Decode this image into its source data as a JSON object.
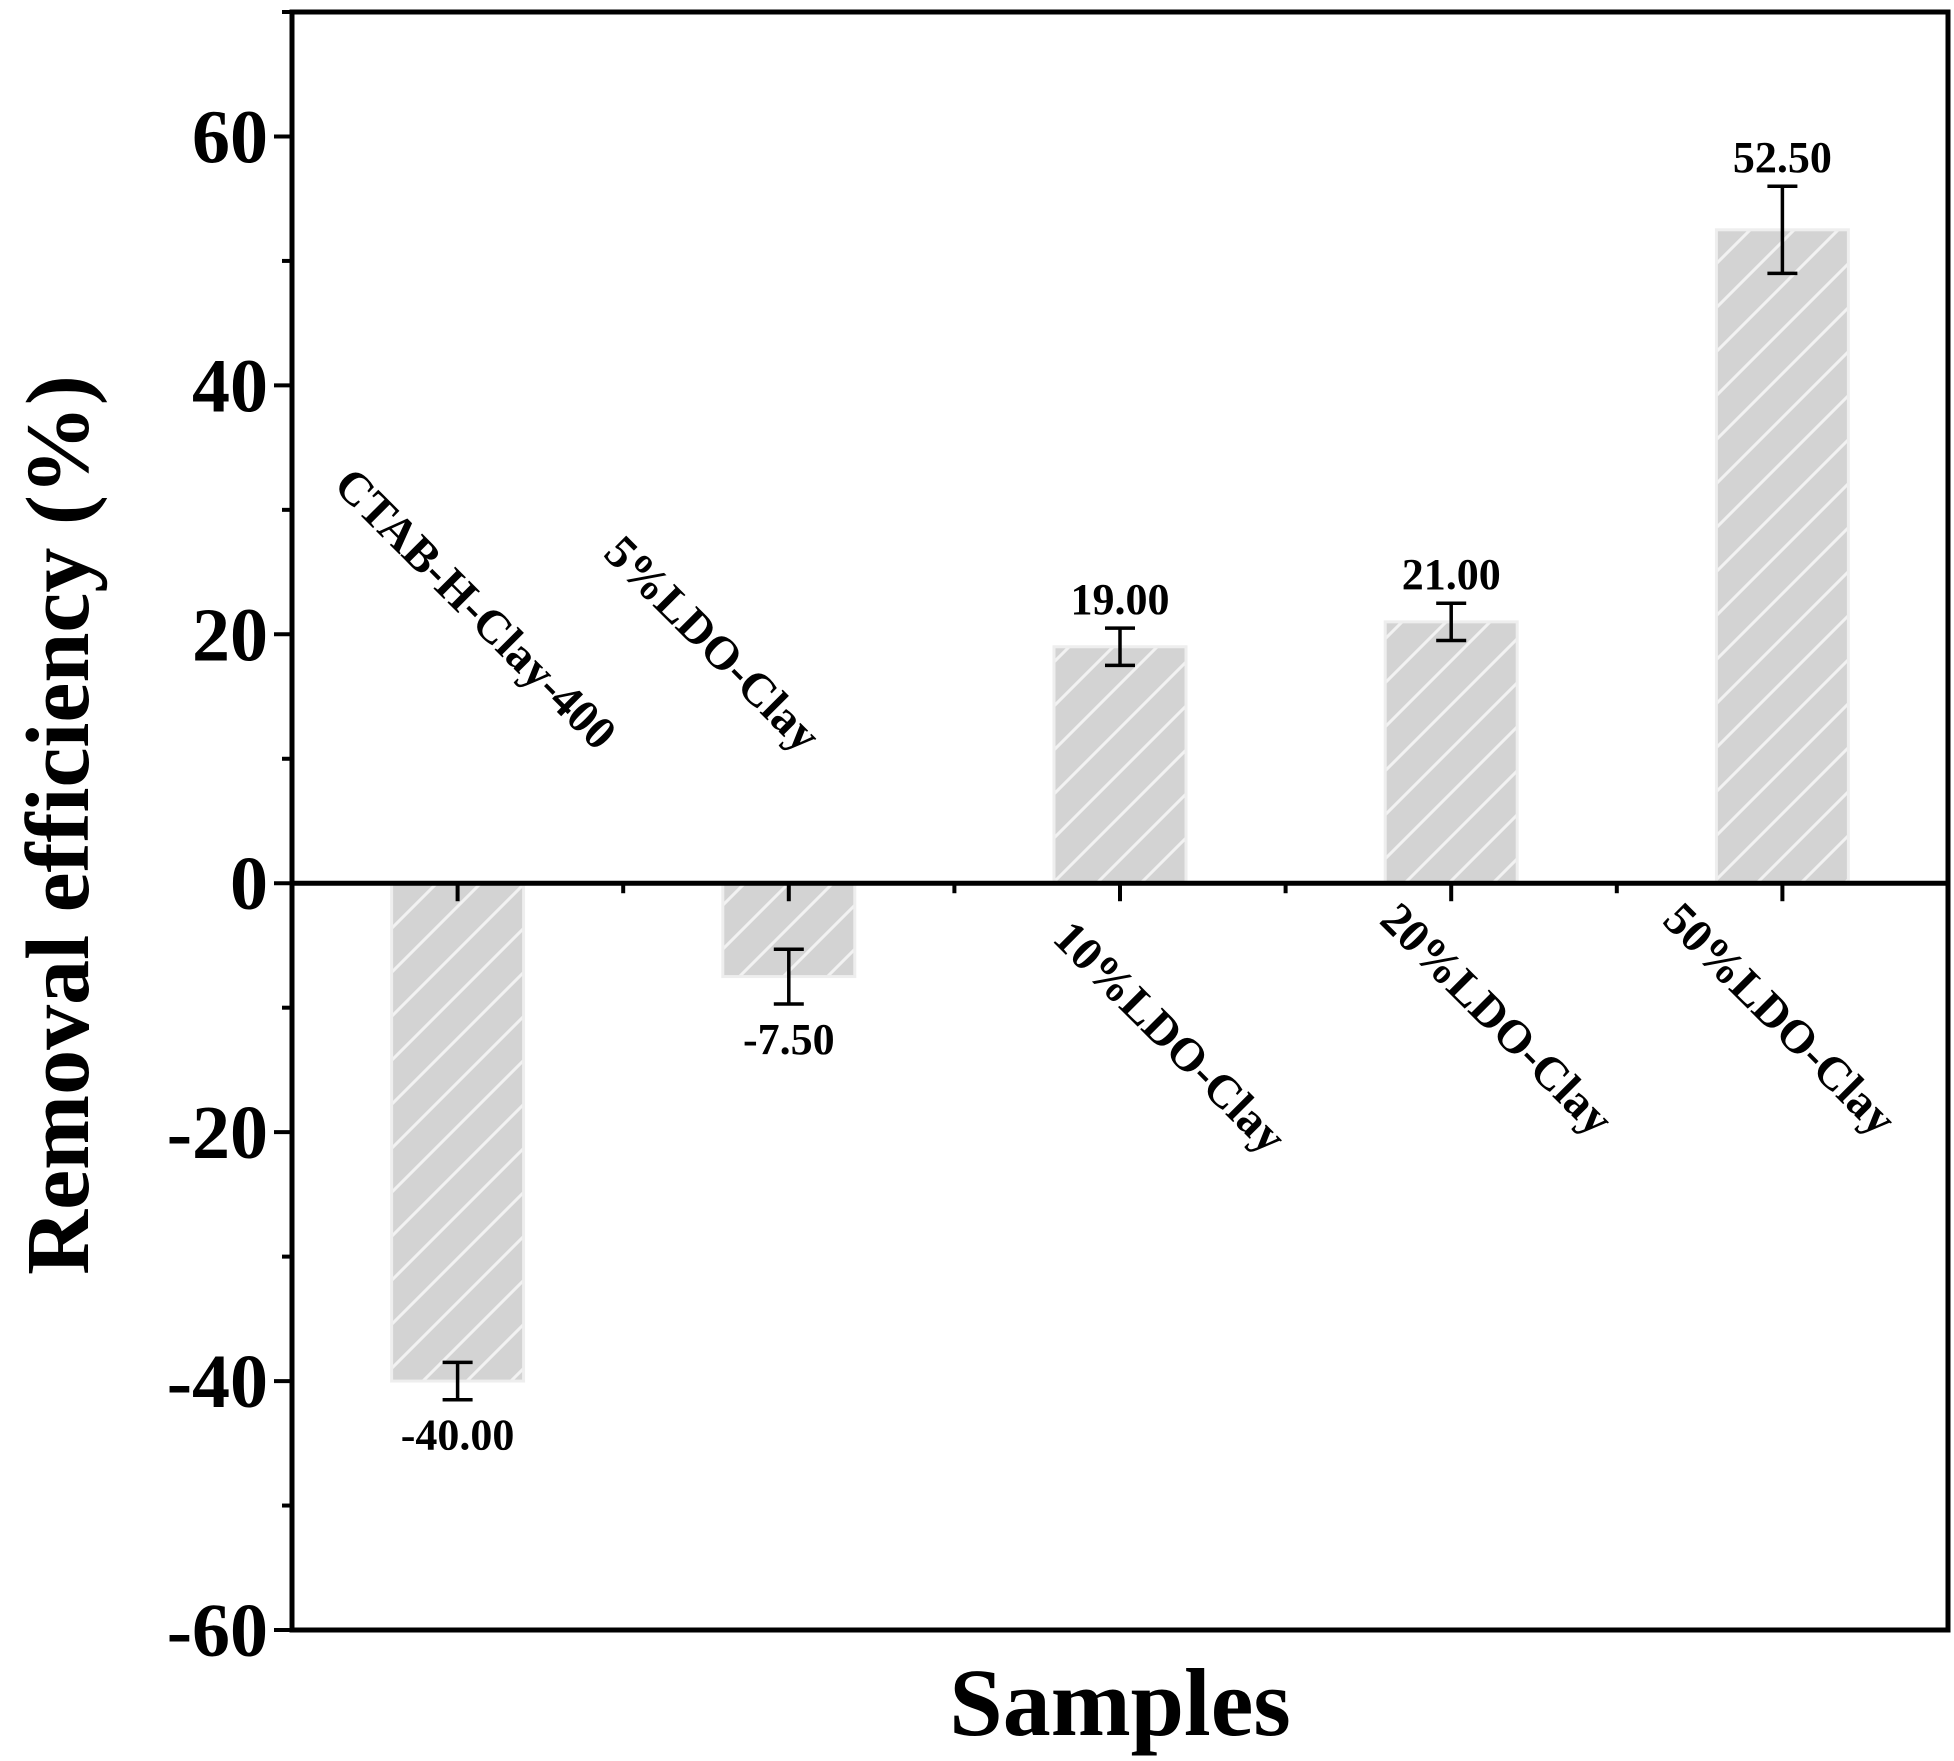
{
  "chart_data": {
    "type": "bar",
    "title": "",
    "xlabel": "Samples",
    "ylabel": "Removal efficiency (%)",
    "ylim": [
      -60,
      70
    ],
    "yticks": [
      -60,
      -40,
      -20,
      0,
      20,
      40,
      60
    ],
    "ytick_labels": [
      "-60",
      "-40",
      "-20",
      "0",
      "20",
      "40",
      "60"
    ],
    "categories": [
      "CTAB-H-Clay-400",
      "5%LDO-Clay",
      "10%LDO-Clay",
      "20%LDO-Clay",
      "50%LDO-Clay"
    ],
    "values": [
      -40.0,
      -7.5,
      19.0,
      21.0,
      52.5
    ],
    "errors": [
      1.5,
      2.2,
      1.5,
      1.5,
      3.5
    ],
    "value_labels": [
      "-40.00",
      "-7.50",
      "19.00",
      "21.00",
      "52.50"
    ],
    "grid": false,
    "colors": {
      "bar_fill": "#d3d3d3",
      "bar_hatch": "#f2f2f2",
      "bar_edge": "#eeeeee",
      "axis": "#000000"
    }
  }
}
